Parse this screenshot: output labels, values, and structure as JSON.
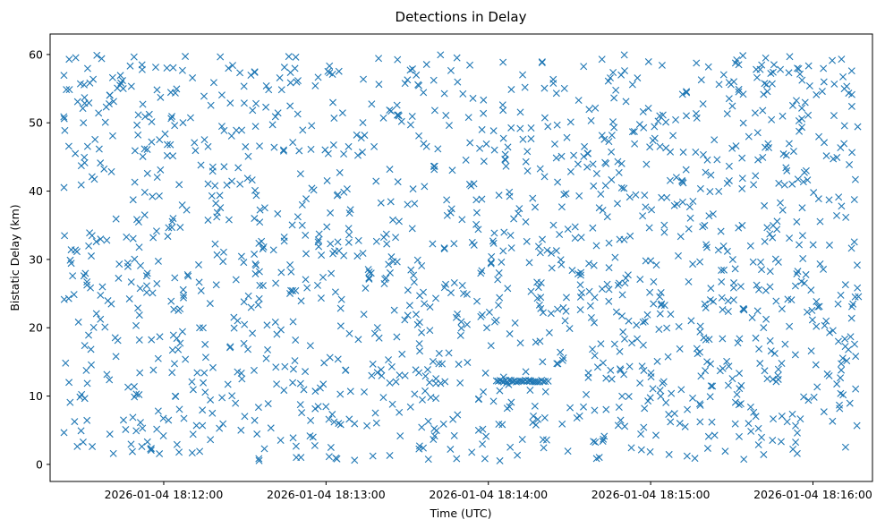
{
  "chart_data": {
    "type": "scatter",
    "title": "Detections in Delay",
    "xlabel": "Time (UTC)",
    "ylabel": "Bistatic Delay (km)",
    "marker": "x",
    "color": "#1f77b4",
    "grid": false,
    "x_start": "2026-01-04 18:11:23",
    "x_end": "2026-01-04 18:16:17",
    "xlim": [
      "2026-01-04 18:11:18",
      "2026-01-04 18:16:22"
    ],
    "ylim": [
      -2.5,
      63
    ],
    "x_ticks": [
      "2026-01-04 18:12:00",
      "2026-01-04 18:13:00",
      "2026-01-04 18:14:00",
      "2026-01-04 18:15:00",
      "2026-01-04 18:16:00"
    ],
    "y_ticks": [
      "0",
      "10",
      "20",
      "30",
      "40",
      "50",
      "60"
    ],
    "y_range": [
      0.5,
      60
    ],
    "point_count": 1500,
    "cluster": {
      "time_start": "2026-01-04 18:14:03",
      "time_end": "2026-01-04 18:14:21",
      "delay": 12.2,
      "count": 28
    }
  }
}
